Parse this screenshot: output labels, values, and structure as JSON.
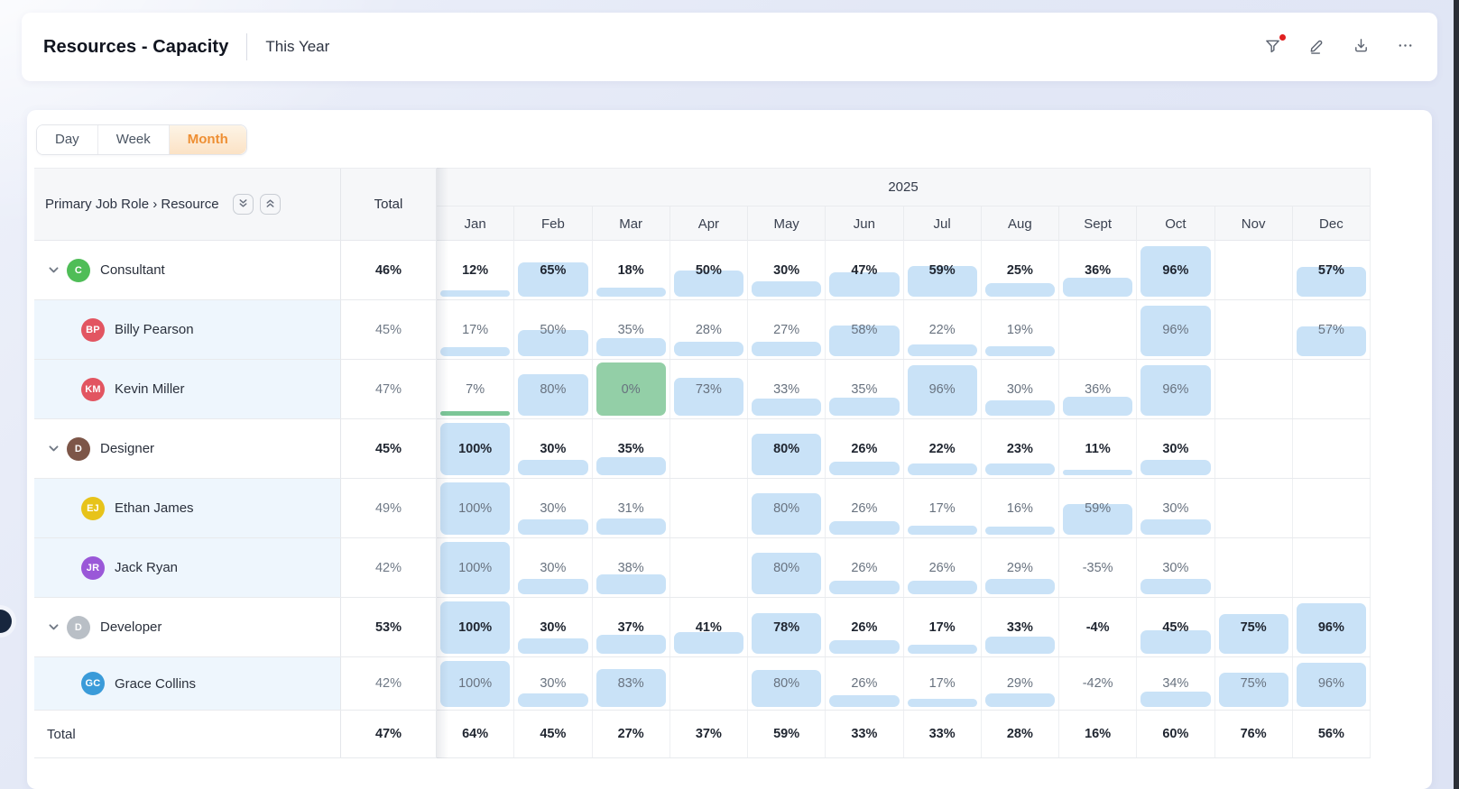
{
  "header": {
    "title": "Resources - Capacity",
    "subtitle": "This Year",
    "icons": [
      "filter-icon",
      "edit-icon",
      "download-icon",
      "more-icon"
    ]
  },
  "tabs": [
    {
      "label": "Day",
      "active": false
    },
    {
      "label": "Week",
      "active": false
    },
    {
      "label": "Month",
      "active": true
    }
  ],
  "colors": {
    "accent_orange": "#ee8f33",
    "bar_blue": "#c9e2f7",
    "bar_green": "#7cc697",
    "cell_green": "#93cfa7",
    "badge_red": "#e02020",
    "person_row_bg": "#eef6fd"
  },
  "table": {
    "corner_label": "Primary Job Role › Resource",
    "corner_buttons": [
      "expand-all",
      "collapse-all"
    ],
    "total_label": "Total",
    "year": "2025",
    "months": [
      "Jan",
      "Feb",
      "Mar",
      "Apr",
      "May",
      "Jun",
      "Jul",
      "Aug",
      "Sept",
      "Oct",
      "Nov",
      "Dec"
    ],
    "rows": [
      {
        "type": "group",
        "name": "Consultant",
        "avatar": "C",
        "avatar_color": "#4fbd57",
        "total": "46%",
        "values": [
          12,
          65,
          18,
          50,
          30,
          47,
          59,
          25,
          36,
          96,
          null,
          57
        ]
      },
      {
        "type": "person",
        "name": "Billy Pearson",
        "avatar": "BP",
        "avatar_color": "#e25561",
        "total": "45%",
        "values": [
          17,
          50,
          35,
          28,
          27,
          58,
          22,
          19,
          null,
          96,
          null,
          57
        ]
      },
      {
        "type": "person",
        "name": "Kevin Miller",
        "avatar": "KM",
        "avatar_color": "#e25561",
        "total": "47%",
        "values": [
          7,
          80,
          0,
          73,
          33,
          35,
          96,
          30,
          36,
          96,
          null,
          null
        ],
        "green_bar_cols": [
          0
        ],
        "green_cell_cols": [
          2
        ]
      },
      {
        "type": "group",
        "name": "Designer",
        "avatar": "D",
        "avatar_color": "#7d5648",
        "total": "45%",
        "values": [
          100,
          30,
          35,
          null,
          80,
          26,
          22,
          23,
          11,
          30,
          null,
          null
        ]
      },
      {
        "type": "person",
        "name": "Ethan James",
        "avatar": "EJ",
        "avatar_color": "#e7c31a",
        "total": "49%",
        "values": [
          100,
          30,
          31,
          null,
          80,
          26,
          17,
          16,
          59,
          30,
          null,
          null
        ]
      },
      {
        "type": "person",
        "name": "Jack Ryan",
        "avatar": "JR",
        "avatar_color": "#9a58d8",
        "total": "42%",
        "values": [
          100,
          30,
          38,
          null,
          80,
          26,
          26,
          29,
          -35,
          30,
          null,
          null
        ]
      },
      {
        "type": "group",
        "name": "Developer",
        "avatar": "D",
        "avatar_color": "#b9bfc6",
        "total": "53%",
        "values": [
          100,
          30,
          37,
          41,
          78,
          26,
          17,
          33,
          -4,
          45,
          75,
          96
        ]
      },
      {
        "type": "person",
        "name": "Grace Collins",
        "avatar": "GC",
        "avatar_color": "#3a9bd9",
        "total": "42%",
        "values": [
          100,
          30,
          83,
          null,
          80,
          26,
          17,
          29,
          -42,
          34,
          75,
          96
        ],
        "short_row": true
      }
    ],
    "footer": {
      "label": "Total",
      "total": "47%",
      "values": [
        64,
        45,
        27,
        37,
        59,
        33,
        33,
        28,
        16,
        60,
        76,
        56
      ]
    }
  }
}
